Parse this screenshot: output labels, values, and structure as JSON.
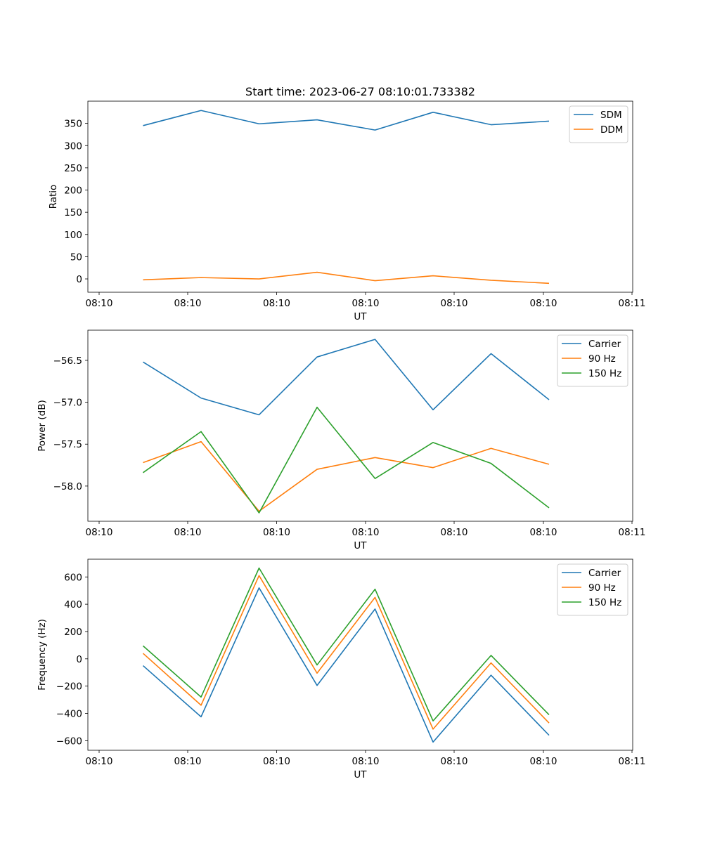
{
  "title": "Start time: 2023-06-27 08:10:01.733382",
  "chart_data": [
    {
      "type": "line",
      "ylabel": "Ratio",
      "xlabel": "UT",
      "x_tick_labels": [
        "08:10",
        "08:10",
        "08:10",
        "08:10",
        "08:10",
        "08:10",
        "08:10",
        "08:11"
      ],
      "ylim": [
        -30,
        400
      ],
      "yticks": [
        0,
        50,
        100,
        150,
        200,
        250,
        300,
        350
      ],
      "legend_position": "top-right",
      "series": [
        {
          "name": "SDM",
          "color": "#1f77b4",
          "values": [
            345,
            379,
            349,
            358,
            335,
            375,
            347,
            355
          ]
        },
        {
          "name": "DDM",
          "color": "#ff7f0e",
          "values": [
            -2,
            3,
            0,
            15,
            -4,
            7,
            -3,
            -10
          ]
        }
      ]
    },
    {
      "type": "line",
      "ylabel": "Power (dB)",
      "xlabel": "UT",
      "x_tick_labels": [
        "08:10",
        "08:10",
        "08:10",
        "08:10",
        "08:10",
        "08:10",
        "08:10",
        "08:11"
      ],
      "ylim": [
        -58.42,
        -56.14
      ],
      "yticks": [
        -58.0,
        -57.5,
        -57.0,
        -56.5
      ],
      "ytick_labels": [
        "−58.0",
        "−57.5",
        "−57.0",
        "−56.5"
      ],
      "legend_position": "top-right",
      "series": [
        {
          "name": "Carrier",
          "color": "#1f77b4",
          "values": [
            -56.52,
            -56.95,
            -57.15,
            -56.46,
            -56.25,
            -57.09,
            -56.42,
            -56.97
          ]
        },
        {
          "name": "90 Hz",
          "color": "#ff7f0e",
          "values": [
            -57.72,
            -57.47,
            -58.3,
            -57.8,
            -57.66,
            -57.78,
            -57.55,
            -57.74
          ]
        },
        {
          "name": "150 Hz",
          "color": "#2ca02c",
          "values": [
            -57.84,
            -57.35,
            -58.32,
            -57.06,
            -57.91,
            -57.48,
            -57.73,
            -58.26
          ]
        }
      ]
    },
    {
      "type": "line",
      "ylabel": "Frequency (Hz)",
      "xlabel": "UT",
      "x_tick_labels": [
        "08:10",
        "08:10",
        "08:10",
        "08:10",
        "08:10",
        "08:10",
        "08:10",
        "08:11"
      ],
      "ylim": [
        -670,
        730
      ],
      "yticks": [
        -600,
        -400,
        -200,
        0,
        200,
        400,
        600
      ],
      "ytick_labels": [
        "−600",
        "−400",
        "−200",
        "0",
        "200",
        "400",
        "600"
      ],
      "legend_position": "top-right",
      "series": [
        {
          "name": "Carrier",
          "color": "#1f77b4",
          "values": [
            -50,
            -425,
            520,
            -195,
            365,
            -610,
            -120,
            -560
          ]
        },
        {
          "name": "90 Hz",
          "color": "#ff7f0e",
          "values": [
            40,
            -340,
            610,
            -105,
            450,
            -515,
            -30,
            -470
          ]
        },
        {
          "name": "150 Hz",
          "color": "#2ca02c",
          "values": [
            95,
            -280,
            665,
            -45,
            510,
            -455,
            25,
            -410
          ]
        }
      ]
    }
  ]
}
